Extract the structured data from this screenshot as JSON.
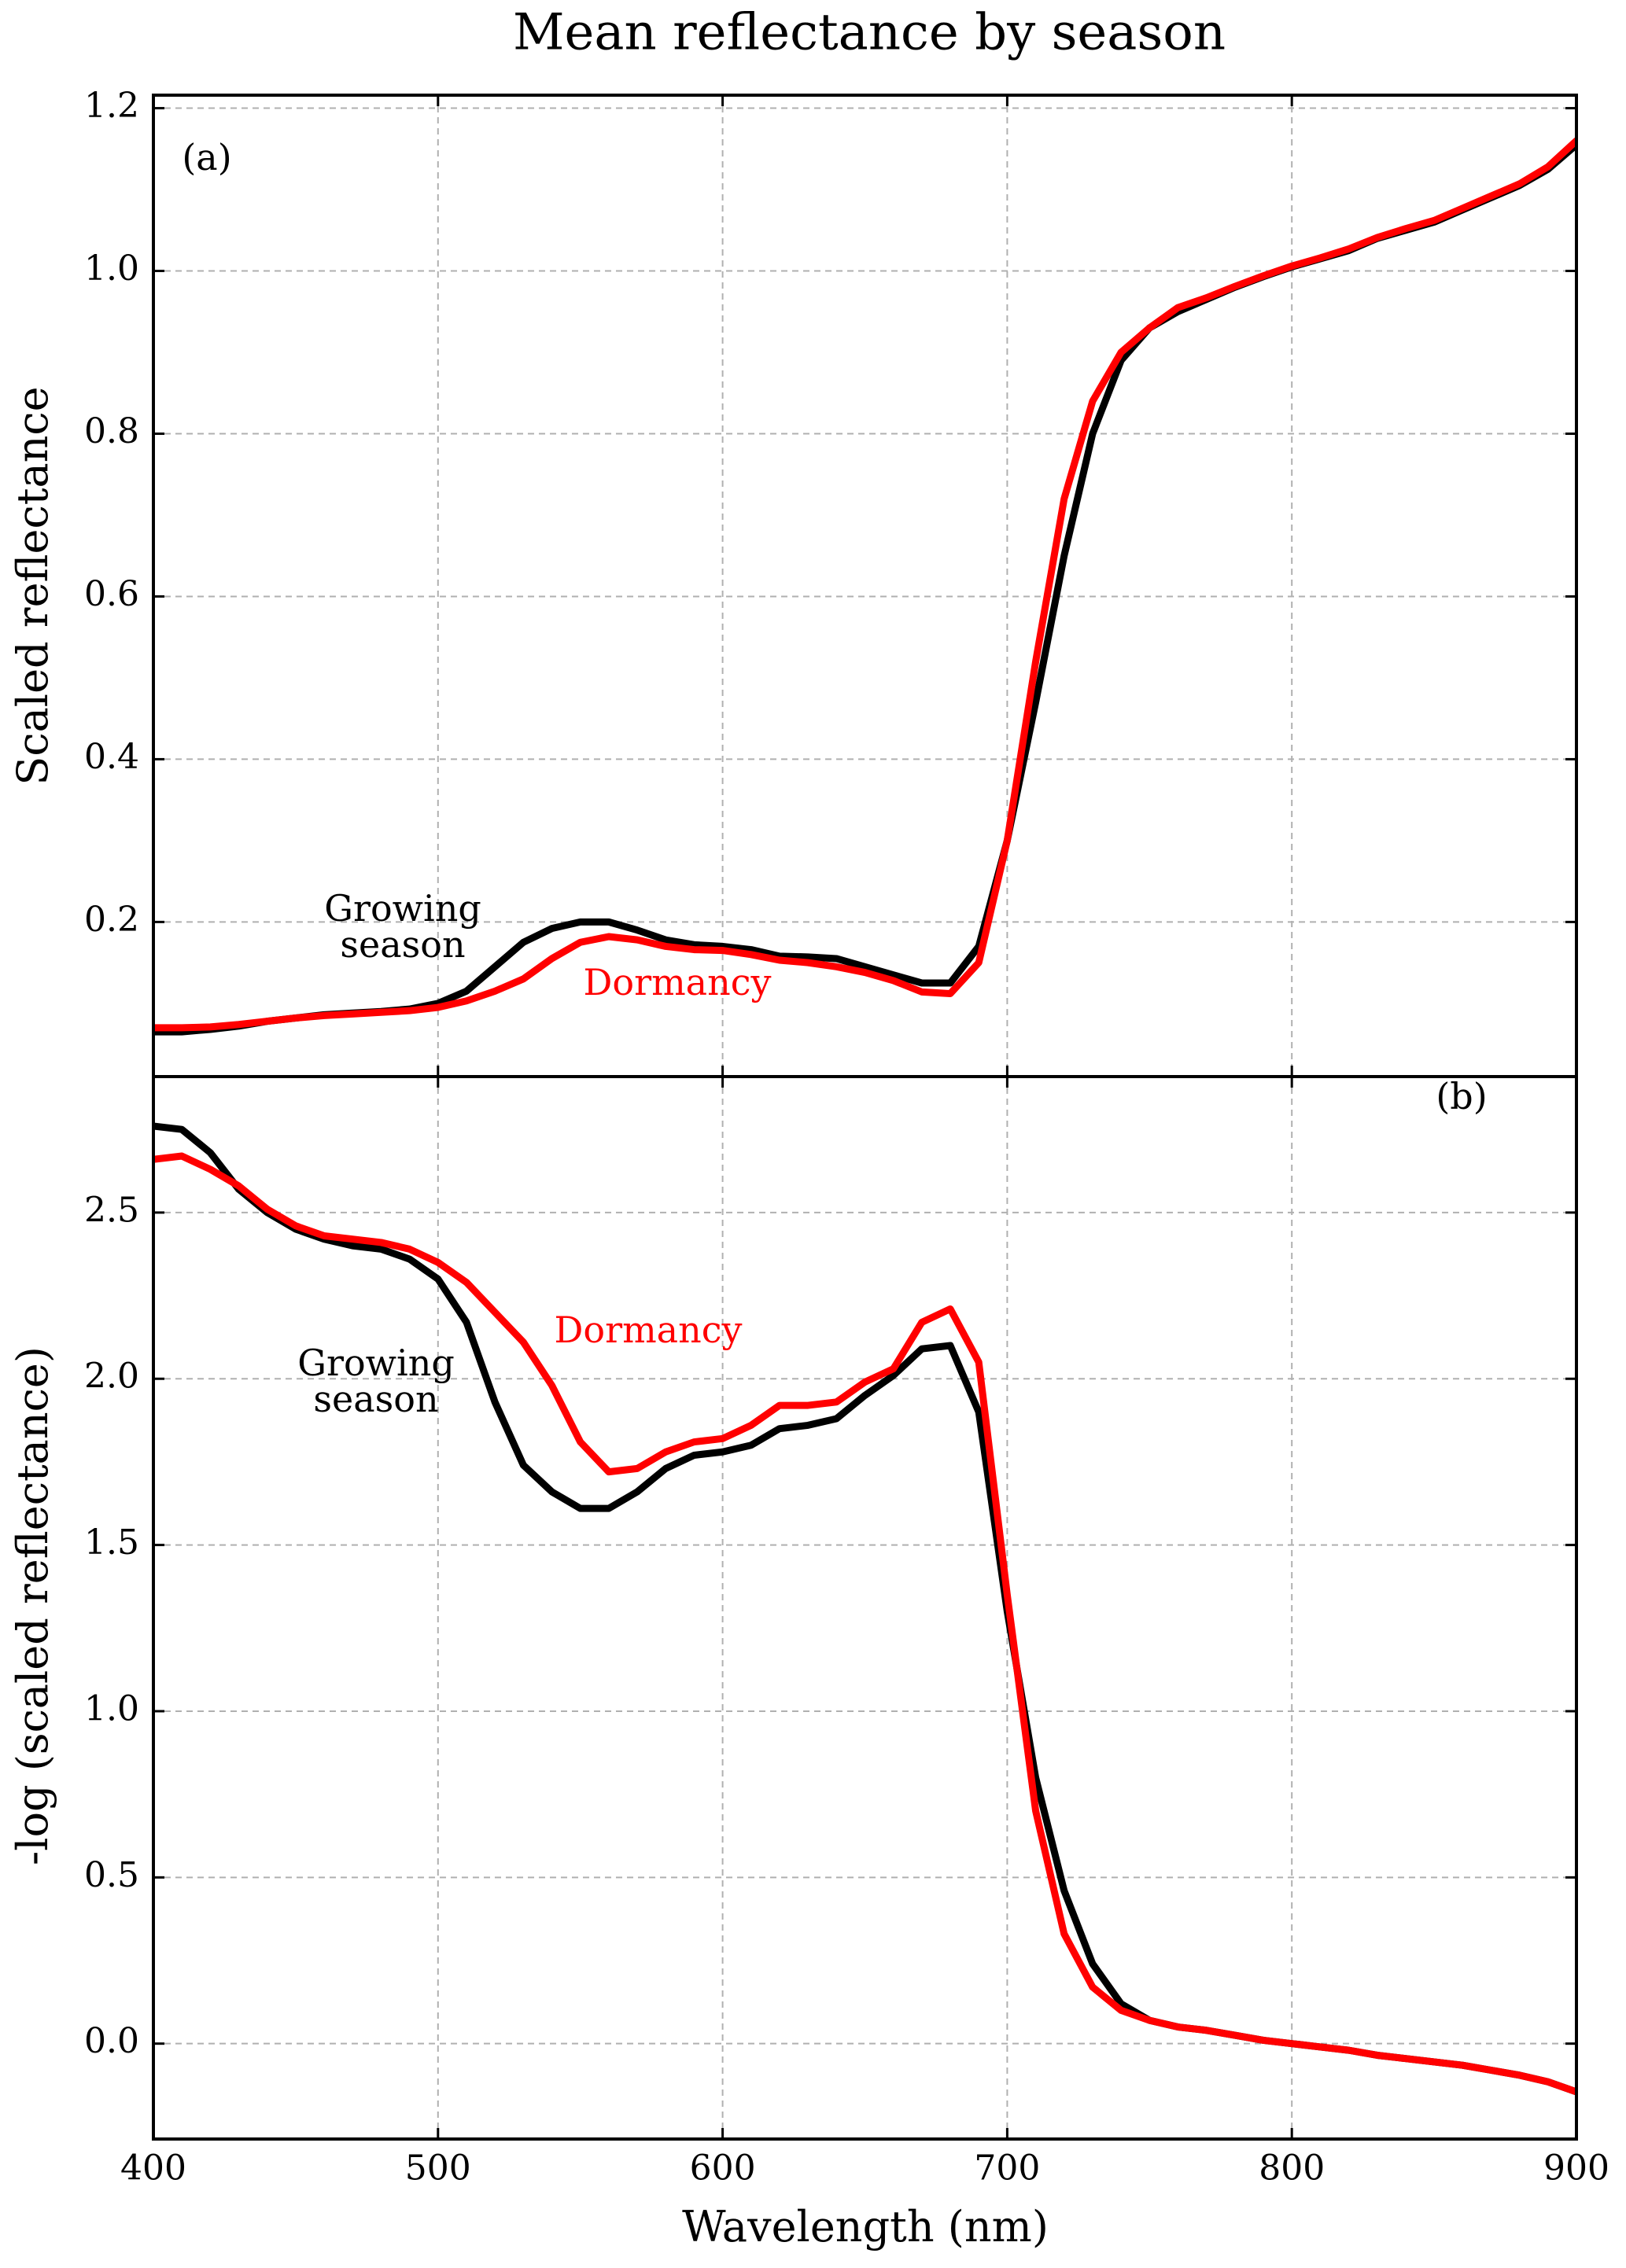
{
  "title": "Mean reflectance by season",
  "xlabel": "Wavelength (nm)",
  "chart_data": [
    {
      "type": "line",
      "ylabel": "Scaled reflectance",
      "grid": true,
      "xlim": [
        400,
        900
      ],
      "xticks": [
        400,
        500,
        600,
        700,
        800,
        900
      ],
      "ylim": [
        0.01,
        1.216
      ],
      "yticks": [
        0.2,
        0.4,
        0.6,
        0.8,
        {
          "value": 1,
          "label": "1.0"
        },
        1.2
      ],
      "x": [
        400,
        410,
        420,
        430,
        440,
        450,
        460,
        470,
        480,
        490,
        500,
        510,
        520,
        530,
        540,
        550,
        560,
        570,
        580,
        590,
        600,
        610,
        620,
        630,
        640,
        650,
        660,
        670,
        680,
        690,
        700,
        710,
        720,
        730,
        740,
        750,
        760,
        770,
        780,
        790,
        800,
        810,
        820,
        830,
        840,
        850,
        860,
        870,
        880,
        890,
        900
      ],
      "series": [
        {
          "name": "Growing season",
          "color": "#000000",
          "values": [
            0.065,
            0.065,
            0.068,
            0.072,
            0.078,
            0.082,
            0.086,
            0.088,
            0.09,
            0.093,
            0.1,
            0.115,
            0.145,
            0.175,
            0.192,
            0.2,
            0.2,
            0.19,
            0.178,
            0.172,
            0.17,
            0.166,
            0.158,
            0.157,
            0.155,
            0.145,
            0.135,
            0.125,
            0.125,
            0.17,
            0.3,
            0.47,
            0.65,
            0.8,
            0.89,
            0.93,
            0.95,
            0.965,
            0.98,
            0.993,
            1.005,
            1.015,
            1.025,
            1.04,
            1.05,
            1.06,
            1.075,
            1.09,
            1.105,
            1.125,
            1.155
          ]
        },
        {
          "name": "Dormancy",
          "color": "#ff0000",
          "values": [
            0.07,
            0.07,
            0.071,
            0.074,
            0.078,
            0.082,
            0.085,
            0.087,
            0.089,
            0.091,
            0.095,
            0.103,
            0.115,
            0.13,
            0.155,
            0.175,
            0.182,
            0.178,
            0.17,
            0.166,
            0.165,
            0.16,
            0.153,
            0.15,
            0.145,
            0.138,
            0.128,
            0.114,
            0.112,
            0.15,
            0.3,
            0.52,
            0.72,
            0.84,
            0.9,
            0.93,
            0.955,
            0.967,
            0.981,
            0.994,
            1.006,
            1.016,
            1.027,
            1.041,
            1.052,
            1.062,
            1.077,
            1.092,
            1.107,
            1.128,
            1.16
          ]
        }
      ],
      "annotations": [
        {
          "lines": [
            "(a)"
          ],
          "color": "#000000"
        },
        {
          "lines": [
            "Growing",
            "season"
          ],
          "color": "#000000"
        },
        {
          "lines": [
            "Dormancy"
          ],
          "color": "#ff0000"
        }
      ]
    },
    {
      "type": "line",
      "ylabel": "-log (scaled reflectance)",
      "grid": true,
      "xlim": [
        400,
        900
      ],
      "xticks": [
        400,
        500,
        600,
        700,
        800,
        900
      ],
      "ylim": [
        -0.287,
        2.909
      ],
      "yticks": [
        {
          "value": 0,
          "label": "0.0"
        },
        0.5,
        {
          "value": 1,
          "label": "1.0"
        },
        1.5,
        {
          "value": 2,
          "label": "2.0"
        },
        2.5
      ],
      "x": [
        400,
        410,
        420,
        430,
        440,
        450,
        460,
        470,
        480,
        490,
        500,
        510,
        520,
        530,
        540,
        550,
        560,
        570,
        580,
        590,
        600,
        610,
        620,
        630,
        640,
        650,
        660,
        670,
        680,
        690,
        700,
        710,
        720,
        730,
        740,
        750,
        760,
        770,
        780,
        790,
        800,
        810,
        820,
        830,
        840,
        850,
        860,
        870,
        880,
        890,
        900
      ],
      "series": [
        {
          "name": "Growing season",
          "color": "#000000",
          "values": [
            2.76,
            2.75,
            2.68,
            2.57,
            2.5,
            2.45,
            2.42,
            2.4,
            2.39,
            2.36,
            2.3,
            2.17,
            1.93,
            1.74,
            1.66,
            1.61,
            1.61,
            1.66,
            1.73,
            1.77,
            1.78,
            1.8,
            1.85,
            1.86,
            1.88,
            1.95,
            2.01,
            2.09,
            2.1,
            1.9,
            1.3,
            0.8,
            0.46,
            0.24,
            0.12,
            0.07,
            0.05,
            0.04,
            0.025,
            0.01,
            0.0,
            -0.01,
            -0.02,
            -0.035,
            -0.045,
            -0.055,
            -0.065,
            -0.08,
            -0.095,
            -0.115,
            -0.145
          ]
        },
        {
          "name": "Dormancy",
          "color": "#ff0000",
          "values": [
            2.66,
            2.67,
            2.63,
            2.58,
            2.51,
            2.46,
            2.43,
            2.42,
            2.41,
            2.39,
            2.35,
            2.29,
            2.2,
            2.11,
            1.98,
            1.81,
            1.72,
            1.73,
            1.78,
            1.81,
            1.82,
            1.86,
            1.92,
            1.92,
            1.93,
            1.99,
            2.03,
            2.17,
            2.21,
            2.05,
            1.35,
            0.7,
            0.33,
            0.17,
            0.1,
            0.07,
            0.05,
            0.04,
            0.025,
            0.01,
            0.0,
            -0.01,
            -0.02,
            -0.035,
            -0.045,
            -0.055,
            -0.065,
            -0.08,
            -0.095,
            -0.115,
            -0.145
          ]
        }
      ],
      "annotations": [
        {
          "lines": [
            "(b)"
          ],
          "color": "#000000"
        },
        {
          "lines": [
            "Dormancy"
          ],
          "color": "#ff0000"
        },
        {
          "lines": [
            "Growing",
            "season"
          ],
          "color": "#000000"
        }
      ]
    }
  ]
}
